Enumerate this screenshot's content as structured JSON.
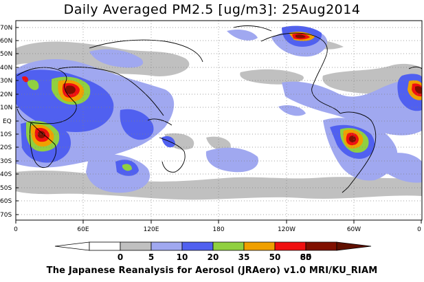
{
  "title": "Daily Averaged PM2.5 [ug/m3]: 25Aug2014",
  "footer": "The Japanese Reanalysis for Aerosol (JRAero) v1.0 MRI/KU_RIAM",
  "lat_labels": [
    "70N",
    "60N",
    "50N",
    "40N",
    "30N",
    "20N",
    "10N",
    "EQ",
    "10S",
    "20S",
    "30S",
    "40S",
    "50S",
    "60S",
    "70S"
  ],
  "lon_labels": [
    "0",
    "60E",
    "120E",
    "180",
    "120W",
    "60W",
    "0"
  ],
  "colorbar": {
    "labels": [
      "0",
      "5",
      "10",
      "20",
      "35",
      "50",
      "65",
      "80"
    ],
    "colors": [
      "#ffffff",
      "#c0c0c0",
      "#a0a8f0",
      "#5060f0",
      "#90d040",
      "#f0a000",
      "#f01010",
      "#801000"
    ]
  }
}
